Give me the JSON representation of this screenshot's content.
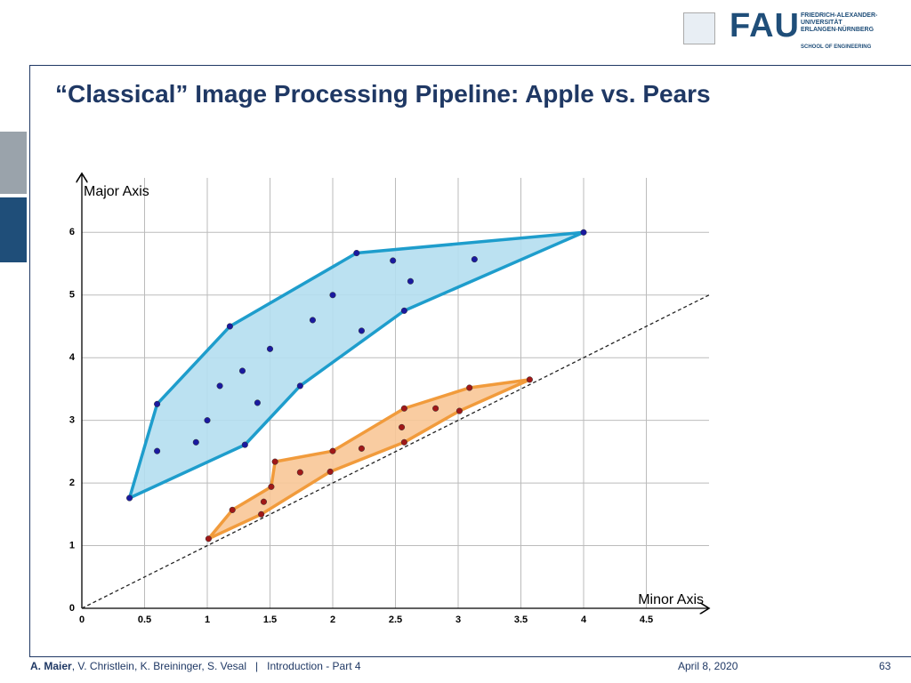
{
  "header": {
    "logo": "FAU",
    "university": "FRIEDRICH-ALEXANDER-UNIVERSITÄT ERLANGEN-NÜRNBERG",
    "school": "SCHOOL OF ENGINEERING"
  },
  "title": "“Classical” Image Processing Pipeline: Apple vs. Pears",
  "footer": {
    "lead_author": "A. Maier",
    "other_authors": ", V. Christlein, K. Breininger, S. Vesal",
    "separator": "|",
    "lecture": "Introduction - Part 4",
    "date": "April 8, 2020",
    "page": "63"
  },
  "chart_data": {
    "type": "scatter",
    "x_label": "Minor Axis",
    "y_label": "Major Axis",
    "xlim": [
      0,
      5
    ],
    "ylim": [
      0,
      6.87
    ],
    "xticks": [
      0,
      0.5,
      1,
      1.5,
      2,
      2.5,
      3,
      3.5,
      4,
      4.5
    ],
    "yticks": [
      0,
      1,
      2,
      3,
      4,
      5,
      6
    ],
    "grid": true,
    "reference_line": {
      "x": [
        0,
        5
      ],
      "y": [
        0,
        5
      ],
      "color": "#222222"
    },
    "series": [
      {
        "color": "#1a1aa0",
        "hull_color": "#1e9dcc",
        "hull_fill": "#b4def0",
        "x": [
          0.38,
          0.6,
          0.6,
          0.91,
          1.0,
          1.1,
          1.18,
          1.28,
          1.3,
          1.4,
          1.5,
          1.74,
          1.84,
          2.0,
          2.19,
          2.23,
          2.48,
          2.57,
          2.62,
          3.13,
          4.0
        ],
        "values": [
          1.76,
          2.51,
          3.26,
          2.65,
          3.0,
          3.55,
          4.5,
          3.79,
          2.61,
          3.28,
          4.14,
          3.55,
          4.6,
          5.0,
          5.67,
          4.43,
          5.55,
          4.75,
          5.22,
          5.57,
          6.0
        ],
        "hull_x": [
          0.38,
          0.6,
          1.18,
          2.19,
          4.0,
          2.57,
          1.74,
          1.3
        ],
        "hull_y": [
          1.76,
          3.26,
          4.5,
          5.67,
          6.0,
          4.75,
          3.55,
          2.61
        ]
      },
      {
        "color": "#a01818",
        "hull_color": "#f19b3c",
        "hull_fill": "#f8c797",
        "x": [
          1.01,
          1.2,
          1.43,
          1.45,
          1.51,
          1.54,
          1.74,
          1.98,
          2.0,
          2.23,
          2.55,
          2.57,
          2.57,
          2.82,
          3.01,
          3.09,
          3.57
        ],
        "values": [
          1.11,
          1.57,
          1.5,
          1.7,
          1.94,
          2.34,
          2.17,
          2.18,
          2.51,
          2.55,
          2.89,
          2.65,
          3.19,
          3.19,
          3.15,
          3.52,
          3.65
        ],
        "hull_x": [
          1.01,
          1.2,
          1.51,
          1.54,
          2.0,
          2.57,
          3.09,
          3.57,
          3.01,
          2.57,
          1.98,
          1.43
        ],
        "hull_y": [
          1.11,
          1.57,
          1.94,
          2.34,
          2.51,
          3.19,
          3.52,
          3.65,
          3.15,
          2.65,
          2.18,
          1.5
        ]
      }
    ]
  }
}
